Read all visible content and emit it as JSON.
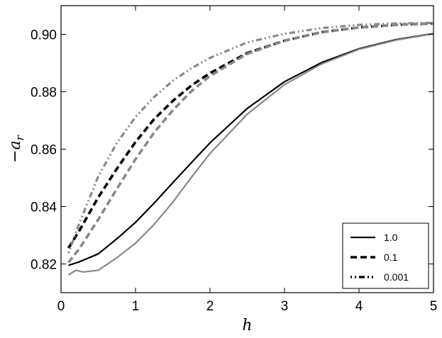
{
  "chart_data": {
    "type": "line",
    "xlabel": "h",
    "ylabel": "−a",
    "ylabel_sub": "r",
    "xlim": [
      0,
      5
    ],
    "ylim": [
      0.81,
      0.91
    ],
    "x_ticks": [
      0,
      1,
      2,
      3,
      4,
      5
    ],
    "x_tick_labels": [
      "0",
      "1",
      "2",
      "3",
      "4",
      "5"
    ],
    "y_ticks": [
      0.82,
      0.84,
      0.86,
      0.88,
      0.9
    ],
    "y_tick_labels": [
      "0.82",
      "0.84",
      "0.86",
      "0.88",
      "0.90"
    ],
    "grid": false,
    "legend_position": "bottom-right",
    "legend": [
      {
        "label": "1.0",
        "dash": "solid"
      },
      {
        "label": "0.1",
        "dash": "dashed"
      },
      {
        "label": "0.001",
        "dash": "dashdot"
      }
    ],
    "series": [
      {
        "legend_index": 0,
        "color": "#000000",
        "dash": "solid",
        "x": [
          0.1,
          0.25,
          0.5,
          0.75,
          1.0,
          1.25,
          1.5,
          1.75,
          2.0,
          2.5,
          3.0,
          3.5,
          4.0,
          4.5,
          5.0
        ],
        "y": [
          0.8195,
          0.8208,
          0.8235,
          0.8288,
          0.8345,
          0.8412,
          0.8483,
          0.8553,
          0.8622,
          0.8742,
          0.8835,
          0.8902,
          0.895,
          0.8982,
          0.9003
        ]
      },
      {
        "legend_index": null,
        "color": "#888888",
        "dash": "solid",
        "x": [
          0.1,
          0.2,
          0.3,
          0.5,
          0.75,
          1.0,
          1.25,
          1.5,
          1.75,
          2.0,
          2.5,
          3.0,
          3.5,
          4.0,
          4.5,
          5.0
        ],
        "y": [
          0.8162,
          0.8178,
          0.8172,
          0.8178,
          0.8222,
          0.8272,
          0.8338,
          0.8415,
          0.8502,
          0.8585,
          0.8722,
          0.8825,
          0.8897,
          0.8948,
          0.898,
          0.9002
        ]
      },
      {
        "legend_index": 1,
        "color": "#000000",
        "dash": "dashed",
        "x": [
          0.1,
          0.25,
          0.5,
          0.75,
          1.0,
          1.25,
          1.5,
          1.75,
          2.0,
          2.5,
          3.0,
          3.5,
          4.0,
          4.5,
          5.0
        ],
        "y": [
          0.8255,
          0.8318,
          0.8432,
          0.8532,
          0.8625,
          0.8705,
          0.8768,
          0.8822,
          0.8865,
          0.8935,
          0.8978,
          0.9008,
          0.9024,
          0.9033,
          0.9038
        ]
      },
      {
        "legend_index": null,
        "color": "#888888",
        "dash": "dashed",
        "x": [
          0.1,
          0.25,
          0.5,
          0.75,
          1.0,
          1.25,
          1.5,
          1.75,
          2.0,
          2.5,
          3.0,
          3.5,
          4.0,
          4.5,
          5.0
        ],
        "y": [
          0.8205,
          0.8255,
          0.8355,
          0.8462,
          0.8565,
          0.8658,
          0.8735,
          0.8802,
          0.8855,
          0.8932,
          0.8978,
          0.9008,
          0.9024,
          0.9033,
          0.9038
        ]
      },
      {
        "legend_index": 2,
        "color": "#888888",
        "dash": "dashdot",
        "x": [
          0.1,
          0.25,
          0.5,
          0.75,
          1.0,
          1.25,
          1.5,
          1.75,
          2.0,
          2.5,
          3.0,
          3.5,
          4.0,
          4.5,
          5.0
        ],
        "y": [
          0.8238,
          0.8345,
          0.8505,
          0.8622,
          0.8712,
          0.8782,
          0.8838,
          0.8882,
          0.8918,
          0.8972,
          0.9002,
          0.9022,
          0.9033,
          0.9038,
          0.904
        ]
      }
    ]
  }
}
